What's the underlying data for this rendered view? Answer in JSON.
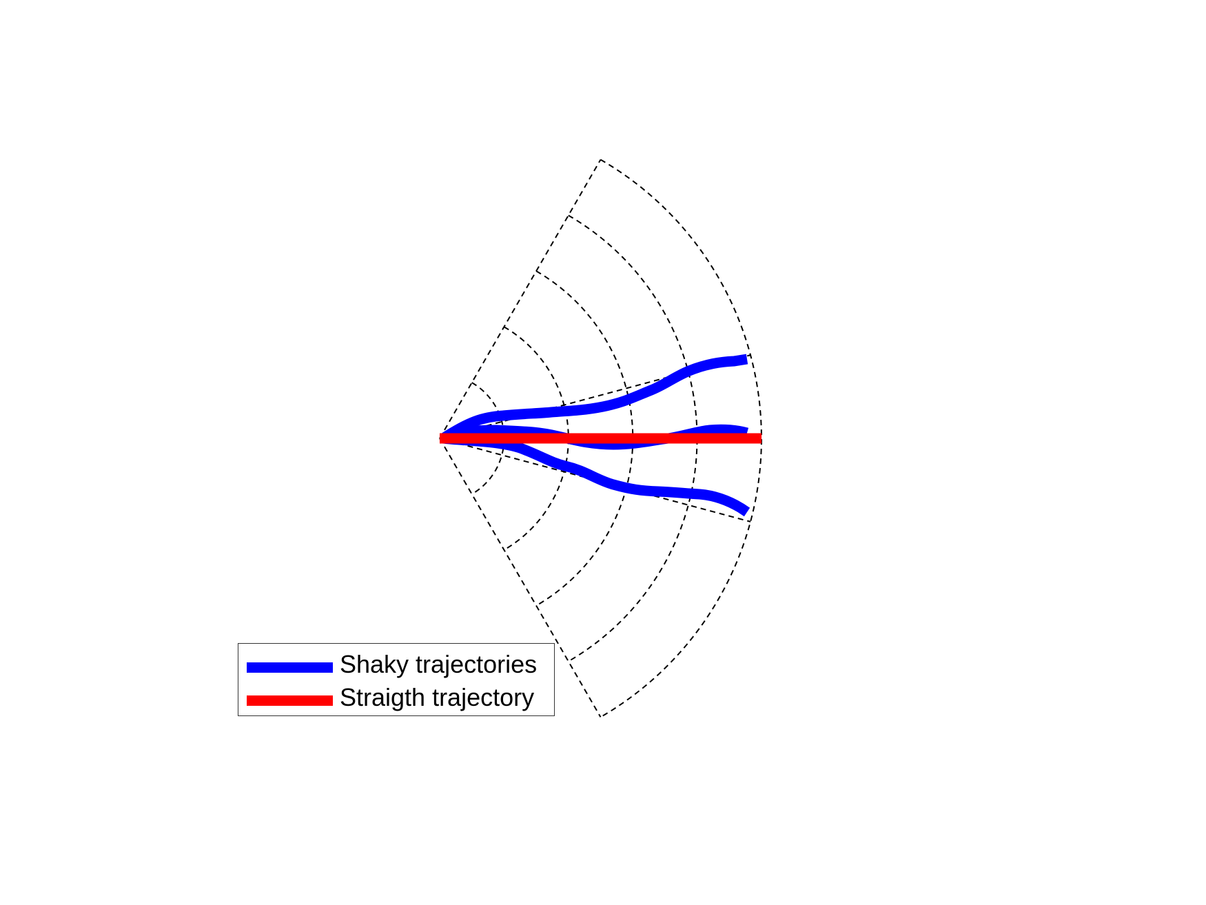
{
  "colors": {
    "shaky": "#0000ff",
    "straight": "#ff0000",
    "grid": "#000000",
    "legend_border": "#333333"
  },
  "legend": {
    "items": [
      {
        "label": "Shaky trajectories",
        "color": "#0000ff"
      },
      {
        "label": "Straigth trajectory",
        "color": "#ff0000"
      }
    ]
  },
  "diagram": {
    "sector_half_angle_deg": 60,
    "inner_ray_angles_deg": [
      15,
      -15
    ],
    "arc_count": 5,
    "grid_style": "dashed",
    "shaky_trajectory_count": 3,
    "straight_trajectory_count": 1
  }
}
